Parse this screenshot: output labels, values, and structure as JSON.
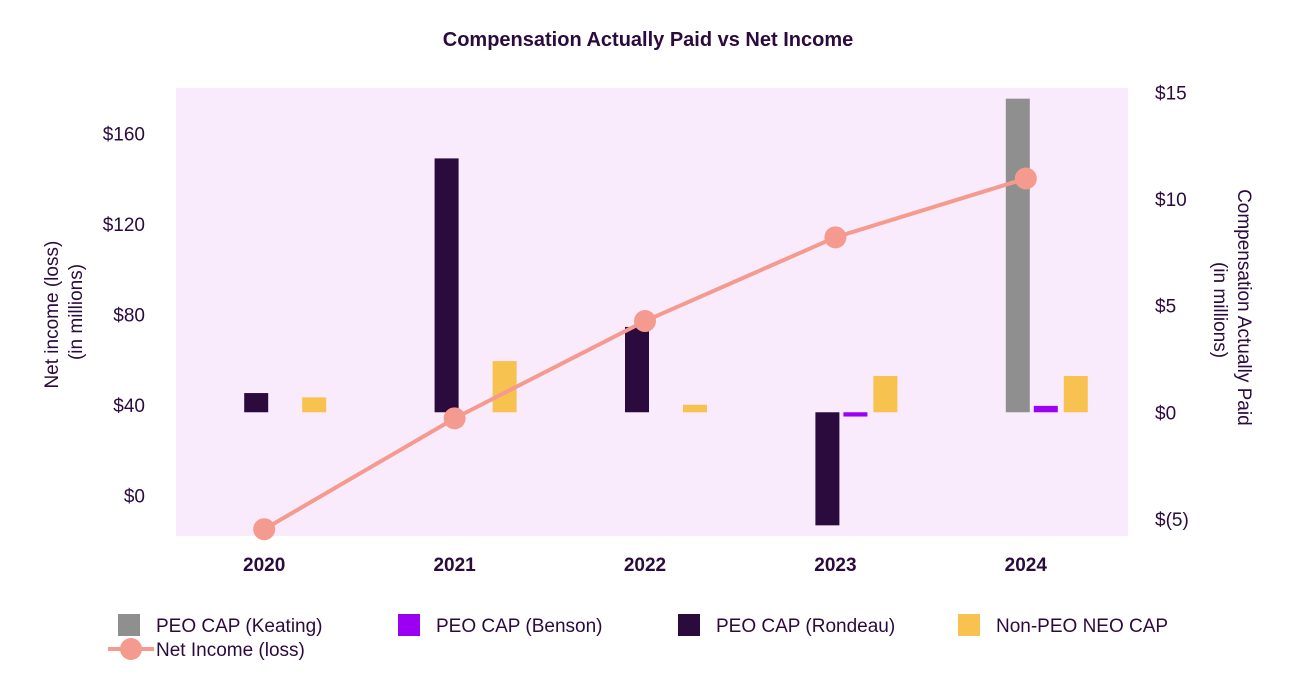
{
  "chart_data": {
    "type": "bar+line",
    "title": "Compensation Actually Paid vs Net Income",
    "categories": [
      "2020",
      "2021",
      "2022",
      "2023",
      "2024"
    ],
    "left_axis": {
      "label_line1": "Net income (loss)",
      "label_line2": "(in millions)",
      "ticks": [
        0,
        40,
        80,
        120,
        160
      ],
      "tick_labels": [
        "$0",
        "$40",
        "$80",
        "$120",
        "$160"
      ],
      "range": [
        -18,
        180
      ]
    },
    "right_axis": {
      "label_line1": "Compensation Actually Paid",
      "label_line2": "(in millions)",
      "ticks": [
        -5,
        0,
        5,
        10,
        15
      ],
      "tick_labels": [
        "$(5)",
        "$0",
        "$5",
        "$10",
        "$15"
      ],
      "range": [
        -5.8,
        15.2
      ]
    },
    "bar_series": [
      {
        "name": "PEO CAP (Keating)",
        "color": "#8f8f8f",
        "slot": 0,
        "values": [
          null,
          null,
          null,
          null,
          14.7
        ]
      },
      {
        "name": "PEO CAP (Benson)",
        "color": "#9b00f2",
        "slot": 1,
        "values": [
          null,
          null,
          null,
          -0.2,
          0.3
        ]
      },
      {
        "name": "PEO CAP (Rondeau)",
        "color": "#2b0a3d",
        "slot": 0,
        "values": [
          0.9,
          11.9,
          4.0,
          -5.3,
          null
        ]
      },
      {
        "name": "Non-PEO NEO CAP",
        "color": "#f7c24f",
        "slot": 2,
        "values": [
          0.7,
          2.4,
          0.35,
          1.7,
          1.7
        ]
      }
    ],
    "line_series": {
      "name": "Net Income (loss)",
      "color": "#f59a8e",
      "values": [
        -15,
        34,
        77,
        114,
        140
      ]
    },
    "legend": [
      {
        "label": "PEO CAP (Keating)",
        "color": "#8f8f8f",
        "kind": "bar"
      },
      {
        "label": "PEO CAP (Benson)",
        "color": "#9b00f2",
        "kind": "bar"
      },
      {
        "label": "PEO CAP (Rondeau)",
        "color": "#2b0a3d",
        "kind": "bar"
      },
      {
        "label": "Non-PEO NEO CAP",
        "color": "#f7c24f",
        "kind": "bar"
      },
      {
        "label": "Net Income (loss)",
        "color": "#f59a8e",
        "kind": "line"
      }
    ],
    "colors": {
      "plot_background": "#f9ebfc",
      "text": "#2b0a3d"
    }
  }
}
